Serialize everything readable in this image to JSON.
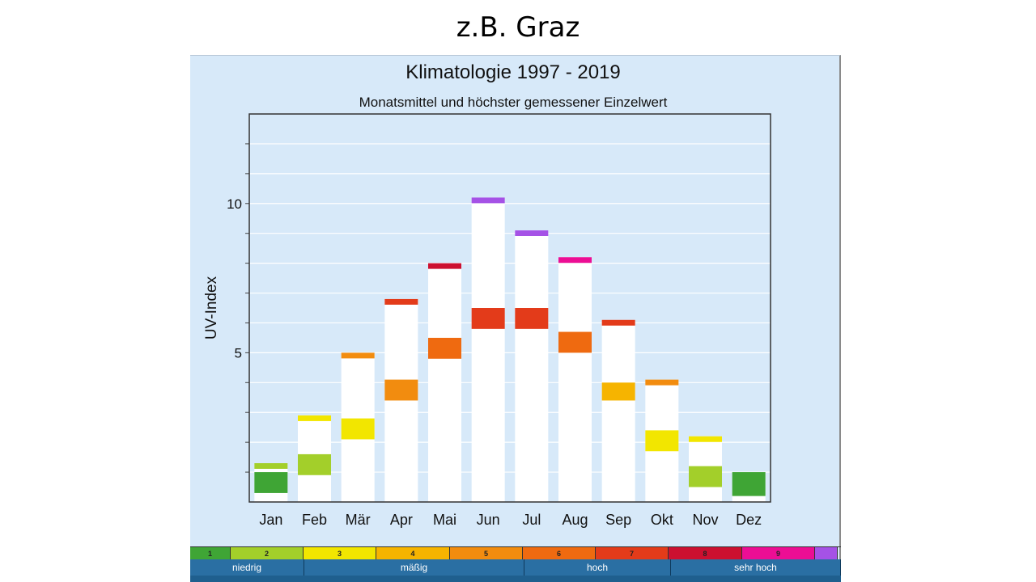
{
  "slide": {
    "title": "z.B. Graz"
  },
  "chart_data": {
    "type": "bar",
    "title": "Klimatologie 1997 - 2019",
    "subtitle": "Monatsmittel und höchster gemessener Einzelwert",
    "xlabel": "",
    "ylabel": "UV-Index",
    "ylim": [
      0,
      13
    ],
    "yticks": [
      5,
      10
    ],
    "categories": [
      "Jan",
      "Feb",
      "Mär",
      "Apr",
      "Mai",
      "Jun",
      "Jul",
      "Aug",
      "Sep",
      "Okt",
      "Nov",
      "Dez"
    ],
    "series": [
      {
        "values": [
          0.3,
          0.9,
          2.1,
          3.4,
          4.8,
          5.8,
          5.8,
          5.0,
          3.4,
          1.7,
          0.5,
          0.2
        ]
      },
      {
        "values": [
          1.0,
          1.6,
          2.8,
          4.1,
          5.5,
          6.5,
          6.5,
          5.7,
          4.0,
          2.4,
          1.2,
          1.0
        ]
      },
      {
        "values": [
          1.3,
          2.9,
          5.0,
          6.8,
          8.0,
          10.2,
          9.1,
          8.2,
          6.1,
          4.1,
          2.2,
          0
        ]
      }
    ],
    "grid": true
  },
  "uv_scale": {
    "levels": [
      {
        "label": "1",
        "color": "#3fa535"
      },
      {
        "label": "2",
        "color": "#a3cf2a"
      },
      {
        "label": "3",
        "color": "#f2e600"
      },
      {
        "label": "4",
        "color": "#f6b400"
      },
      {
        "label": "5",
        "color": "#f28c0f"
      },
      {
        "label": "6",
        "color": "#ef6a10"
      },
      {
        "label": "7",
        "color": "#e33b1a"
      },
      {
        "label": "8",
        "color": "#cc1030"
      },
      {
        "label": "9",
        "color": "#ec0e94"
      },
      {
        "label": "",
        "color": "#a552e6"
      }
    ],
    "categories": [
      {
        "label": "niedrig"
      },
      {
        "label": "mäßig"
      },
      {
        "label": "hoch"
      },
      {
        "label": "sehr hoch"
      }
    ]
  }
}
